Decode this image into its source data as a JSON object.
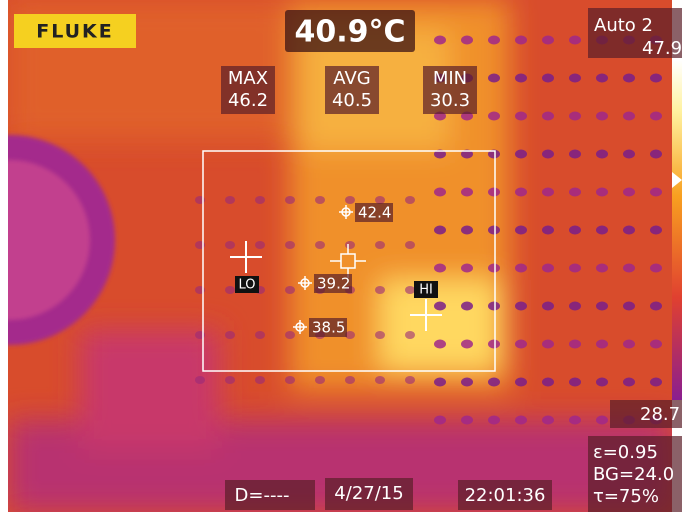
{
  "logo": "FLUKE",
  "center_temperature": "40.9°C",
  "palette": {
    "mode": "Auto 2",
    "max": "47.9",
    "min": "28.7"
  },
  "stats": [
    {
      "label": "MAX",
      "value": "46.2"
    },
    {
      "label": "AVG",
      "value": "40.5"
    },
    {
      "label": "MIN",
      "value": "30.3"
    }
  ],
  "markers": [
    {
      "value": "42.4"
    },
    {
      "value": "39.2"
    },
    {
      "value": "38.5"
    }
  ],
  "cold_spot": "LO",
  "hot_spot": "HI",
  "settings": {
    "emissivity": "ε=0.95",
    "background": "BG=24.0",
    "transmission": "τ=75%"
  },
  "footer": {
    "distance": "D=----",
    "date": "4/27/15",
    "time": "22:01:36"
  }
}
